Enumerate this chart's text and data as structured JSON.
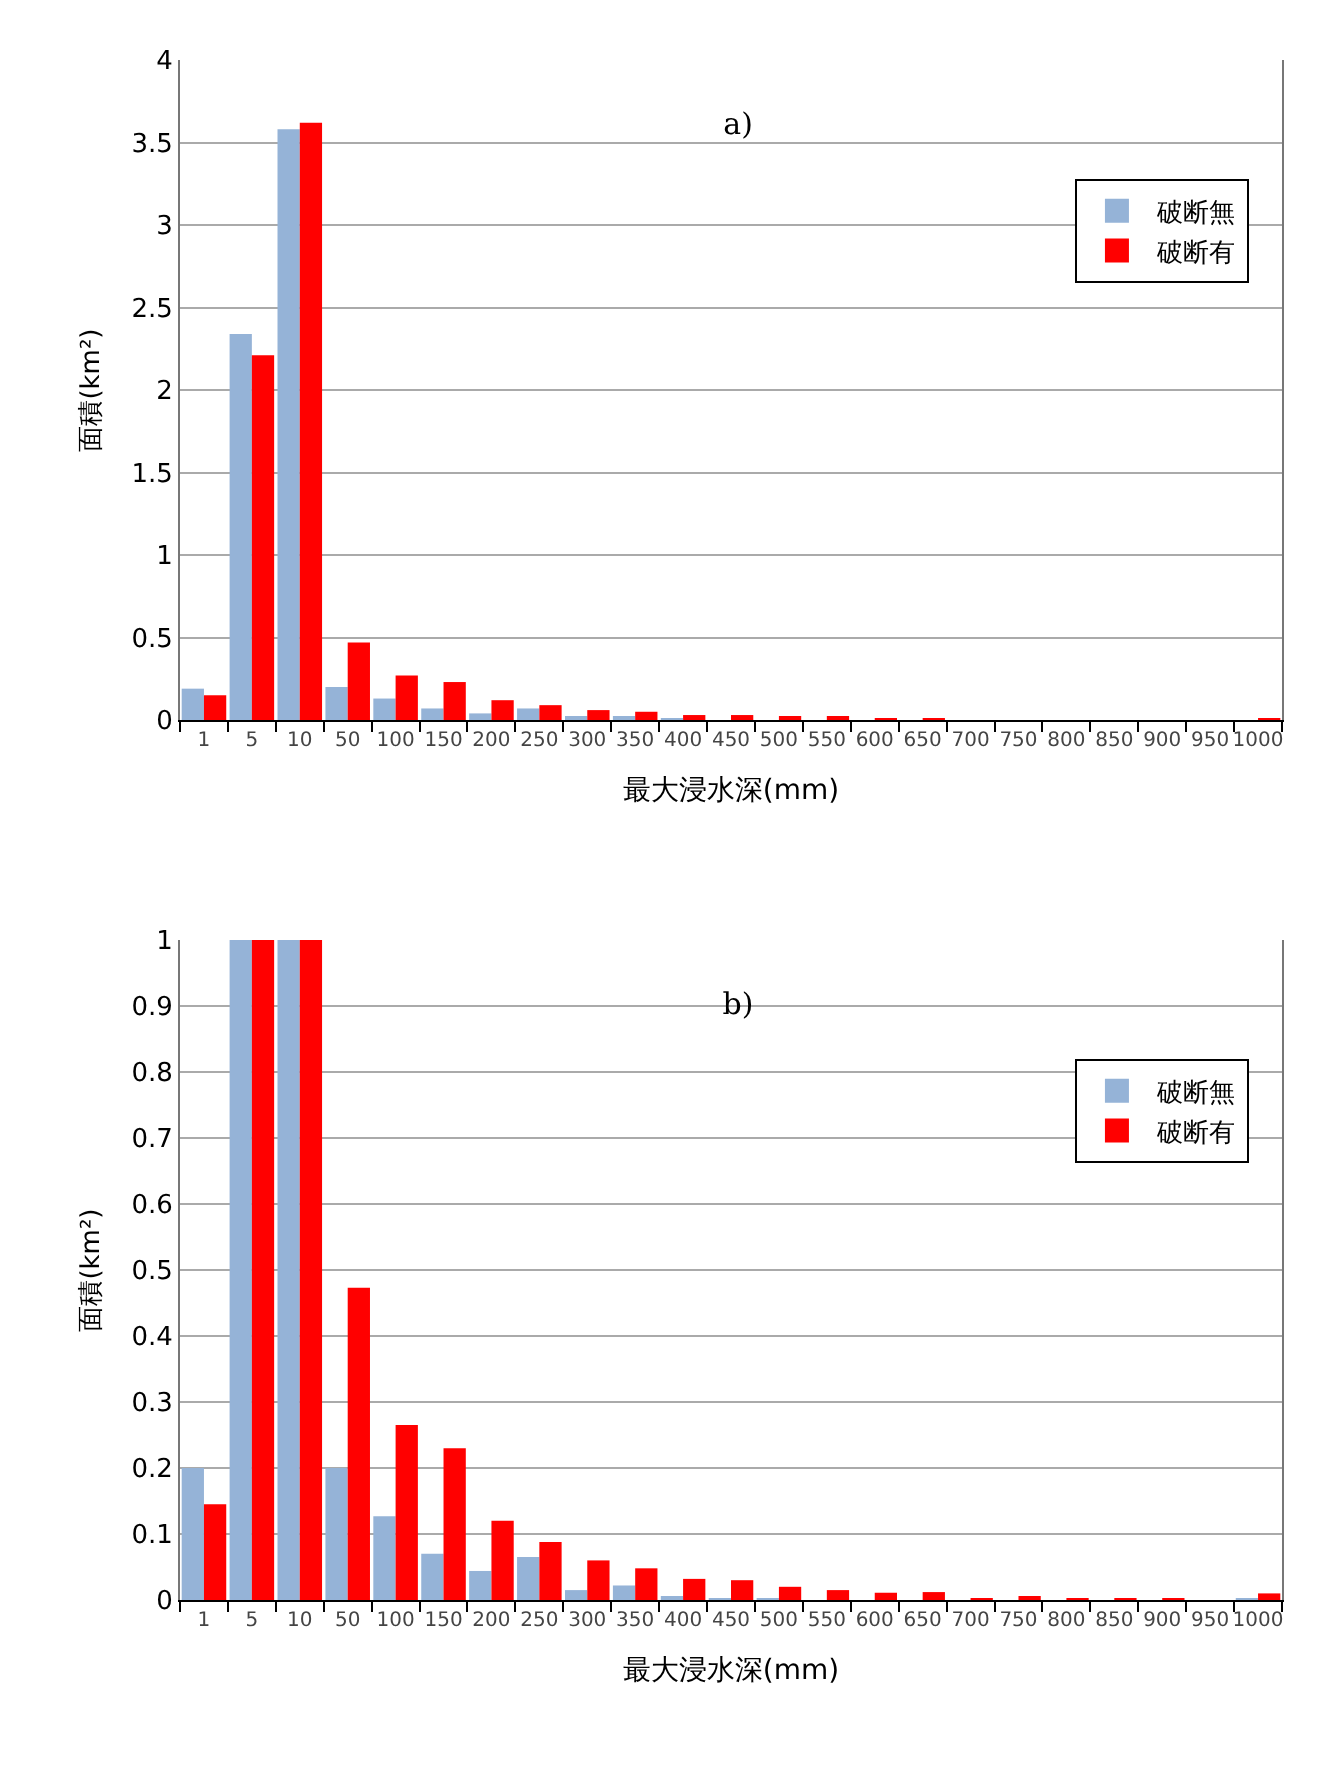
{
  "chart_data": [
    {
      "type": "bar",
      "title": "a)",
      "xlabel": "最大浸水深(mm)",
      "ylabel": "面積(km²)",
      "categories": [
        "1",
        "5",
        "10",
        "50",
        "100",
        "150",
        "200",
        "250",
        "300",
        "350",
        "400",
        "450",
        "500",
        "550",
        "600",
        "650",
        "700",
        "750",
        "800",
        "850",
        "900",
        "950",
        "1000"
      ],
      "series": [
        {
          "name": "破断無",
          "color": "#95b3d7",
          "values": [
            0.19,
            2.34,
            3.58,
            0.2,
            0.13,
            0.07,
            0.04,
            0.07,
            0.02,
            0.02,
            0.01,
            0,
            0,
            0,
            0,
            0,
            0,
            0,
            0,
            0,
            0,
            0,
            0
          ]
        },
        {
          "name": "破断有",
          "color": "#ff0000",
          "values": [
            0.15,
            2.21,
            3.62,
            0.47,
            0.27,
            0.23,
            0.12,
            0.09,
            0.06,
            0.05,
            0.03,
            0.03,
            0.02,
            0.02,
            0.01,
            0.01,
            0,
            0,
            0,
            0,
            0,
            0,
            0.01
          ]
        }
      ],
      "ylim": [
        0,
        4
      ],
      "yticks": [
        0,
        0.5,
        1,
        1.5,
        2,
        2.5,
        3,
        3.5,
        4
      ],
      "grid": "y",
      "legend": "top right"
    },
    {
      "type": "bar",
      "title": "b)",
      "xlabel": "最大浸水深(mm)",
      "ylabel": "面積(km²)",
      "categories": [
        "1",
        "5",
        "10",
        "50",
        "100",
        "150",
        "200",
        "250",
        "300",
        "350",
        "400",
        "450",
        "500",
        "550",
        "600",
        "650",
        "700",
        "750",
        "800",
        "850",
        "900",
        "950",
        "1000"
      ],
      "series": [
        {
          "name": "破断無",
          "color": "#95b3d7",
          "values": [
            0.2,
            1,
            1,
            0.2,
            0.127,
            0.07,
            0.044,
            0.065,
            0.015,
            0.022,
            0.005,
            0.002,
            0.001,
            0,
            0,
            0,
            0,
            0,
            0,
            0,
            0,
            0,
            0.001
          ]
        },
        {
          "name": "破断有",
          "color": "#ff0000",
          "values": [
            0.145,
            1,
            1,
            0.473,
            0.265,
            0.23,
            0.12,
            0.088,
            0.06,
            0.048,
            0.032,
            0.03,
            0.02,
            0.015,
            0.011,
            0.012,
            0.002,
            0.004,
            0.002,
            0.002,
            0.002,
            0,
            0.01
          ]
        }
      ],
      "ylim": [
        0,
        1
      ],
      "yticks": [
        0,
        0.1,
        0.2,
        0.3,
        0.4,
        0.5,
        0.6,
        0.7,
        0.8,
        0.9,
        1
      ],
      "grid": "y",
      "legend": "top right"
    }
  ]
}
